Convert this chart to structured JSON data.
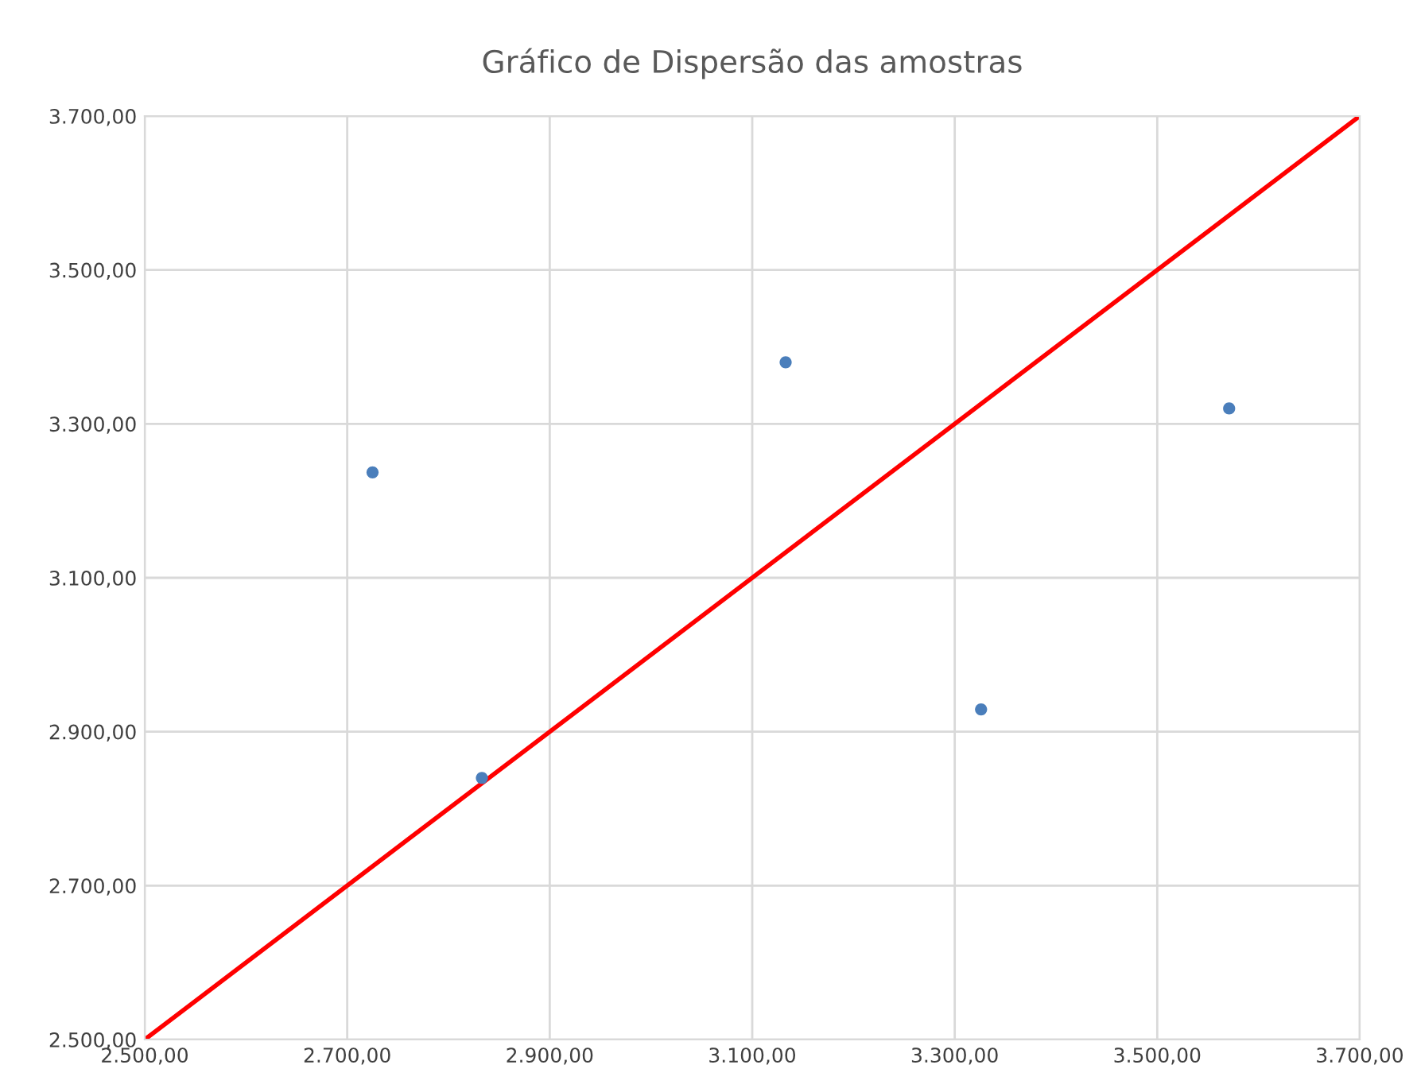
{
  "chart_data": {
    "type": "scatter",
    "title": "Gráfico de Dispersão das amostras",
    "series": [
      {
        "color": "#4a7ebb",
        "marker": "circle",
        "x": [
          2725,
          2833,
          3133,
          3326,
          3571
        ],
        "values": [
          3237,
          2840,
          3380,
          2929,
          3320
        ]
      },
      {
        "type": "line",
        "color": "#ff0000",
        "marker": "none",
        "line_style": "solid",
        "x": [
          2500,
          3700
        ],
        "values": [
          2500,
          3700
        ]
      }
    ],
    "xlim": [
      2500,
      3700
    ],
    "xticks": [
      {
        "value": 2500,
        "label": "2.500,00"
      },
      {
        "value": 2700,
        "label": "2.700,00"
      },
      {
        "value": 2900,
        "label": "2.900,00"
      },
      {
        "value": 3100,
        "label": "3.100,00"
      },
      {
        "value": 3300,
        "label": "3.300,00"
      },
      {
        "value": 3500,
        "label": "3.500,00"
      },
      {
        "value": 3700,
        "label": "3.700,00"
      }
    ],
    "ylim": [
      2500,
      3700
    ],
    "yticks": [
      {
        "value": 2500,
        "label": "2.500,00"
      },
      {
        "value": 2700,
        "label": "2.700,00"
      },
      {
        "value": 2900,
        "label": "2.900,00"
      },
      {
        "value": 3100,
        "label": "3.100,00"
      },
      {
        "value": 3300,
        "label": "3.300,00"
      },
      {
        "value": 3500,
        "label": "3.500,00"
      },
      {
        "value": 3700,
        "label": "3.700,00"
      }
    ],
    "grid": true
  }
}
